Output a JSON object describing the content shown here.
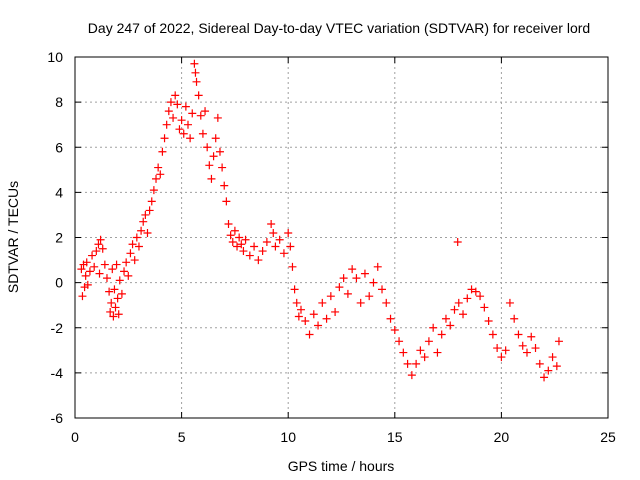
{
  "chart_data": {
    "type": "scatter",
    "title": "Day 247 of 2022, Sidereal Day-to-day VTEC variation (SDTVAR) for receiver lord",
    "xlabel": "GPS time / hours",
    "ylabel": "SDTVAR / TECUs",
    "xlim": [
      0,
      25
    ],
    "ylim": [
      -6,
      10
    ],
    "xticks": [
      0,
      5,
      10,
      15,
      20,
      25
    ],
    "yticks": [
      -6,
      -4,
      -2,
      0,
      2,
      4,
      6,
      8,
      10
    ],
    "grid": true,
    "marker": "+",
    "series_color": "#ff0000",
    "series": [
      {
        "name": "SDTVAR",
        "points": [
          [
            0.3,
            0.6
          ],
          [
            0.35,
            -0.6
          ],
          [
            0.4,
            0.8
          ],
          [
            0.45,
            -0.2
          ],
          [
            0.5,
            0.3
          ],
          [
            0.55,
            0.9
          ],
          [
            0.6,
            -0.1
          ],
          [
            0.7,
            0.5
          ],
          [
            0.8,
            1.2
          ],
          [
            0.9,
            0.7
          ],
          [
            1.0,
            1.4
          ],
          [
            1.1,
            1.7
          ],
          [
            1.15,
            0.4
          ],
          [
            1.2,
            1.9
          ],
          [
            1.3,
            1.5
          ],
          [
            1.4,
            0.8
          ],
          [
            1.5,
            0.2
          ],
          [
            1.6,
            -0.4
          ],
          [
            1.65,
            -1.3
          ],
          [
            1.7,
            -0.9
          ],
          [
            1.75,
            0.6
          ],
          [
            1.8,
            -1.5
          ],
          [
            1.85,
            -0.3
          ],
          [
            1.9,
            -1.1
          ],
          [
            1.95,
            0.8
          ],
          [
            2.0,
            -0.7
          ],
          [
            2.05,
            -1.4
          ],
          [
            2.1,
            0.1
          ],
          [
            2.2,
            -0.5
          ],
          [
            2.3,
            0.5
          ],
          [
            2.4,
            0.9
          ],
          [
            2.5,
            0.3
          ],
          [
            2.6,
            1.3
          ],
          [
            2.7,
            1.7
          ],
          [
            2.8,
            1.0
          ],
          [
            2.9,
            2.0
          ],
          [
            3.0,
            1.6
          ],
          [
            3.1,
            2.3
          ],
          [
            3.2,
            2.7
          ],
          [
            3.3,
            3.0
          ],
          [
            3.4,
            2.2
          ],
          [
            3.5,
            3.2
          ],
          [
            3.6,
            3.6
          ],
          [
            3.7,
            4.1
          ],
          [
            3.8,
            4.6
          ],
          [
            3.9,
            5.1
          ],
          [
            4.0,
            4.8
          ],
          [
            4.1,
            5.8
          ],
          [
            4.2,
            6.4
          ],
          [
            4.3,
            7.0
          ],
          [
            4.4,
            7.6
          ],
          [
            4.5,
            8.0
          ],
          [
            4.6,
            7.3
          ],
          [
            4.7,
            8.3
          ],
          [
            4.8,
            7.9
          ],
          [
            4.9,
            6.8
          ],
          [
            5.0,
            7.2
          ],
          [
            5.1,
            6.6
          ],
          [
            5.2,
            7.8
          ],
          [
            5.3,
            7.0
          ],
          [
            5.4,
            6.4
          ],
          [
            5.5,
            7.5
          ],
          [
            5.6,
            9.7
          ],
          [
            5.65,
            9.3
          ],
          [
            5.7,
            8.9
          ],
          [
            5.8,
            8.3
          ],
          [
            5.9,
            7.4
          ],
          [
            6.0,
            6.6
          ],
          [
            6.1,
            7.6
          ],
          [
            6.2,
            6.0
          ],
          [
            6.3,
            5.2
          ],
          [
            6.4,
            4.6
          ],
          [
            6.5,
            5.6
          ],
          [
            6.6,
            6.4
          ],
          [
            6.7,
            7.3
          ],
          [
            6.8,
            5.8
          ],
          [
            6.9,
            5.1
          ],
          [
            7.0,
            4.3
          ],
          [
            7.1,
            3.6
          ],
          [
            7.2,
            2.6
          ],
          [
            7.3,
            2.1
          ],
          [
            7.4,
            1.8
          ],
          [
            7.5,
            2.3
          ],
          [
            7.6,
            1.6
          ],
          [
            7.7,
            2.0
          ],
          [
            7.8,
            1.7
          ],
          [
            7.9,
            1.4
          ],
          [
            8.0,
            1.9
          ],
          [
            8.2,
            1.2
          ],
          [
            8.4,
            1.6
          ],
          [
            8.6,
            1.0
          ],
          [
            8.8,
            1.4
          ],
          [
            9.0,
            1.8
          ],
          [
            9.2,
            2.6
          ],
          [
            9.3,
            2.2
          ],
          [
            9.4,
            1.6
          ],
          [
            9.6,
            1.9
          ],
          [
            9.8,
            1.3
          ],
          [
            10.0,
            2.2
          ],
          [
            10.1,
            1.6
          ],
          [
            10.2,
            0.7
          ],
          [
            10.3,
            -0.3
          ],
          [
            10.4,
            -0.9
          ],
          [
            10.5,
            -1.5
          ],
          [
            10.6,
            -1.2
          ],
          [
            10.8,
            -1.7
          ],
          [
            11.0,
            -2.3
          ],
          [
            11.2,
            -1.4
          ],
          [
            11.4,
            -1.9
          ],
          [
            11.6,
            -0.9
          ],
          [
            11.8,
            -1.6
          ],
          [
            12.0,
            -0.6
          ],
          [
            12.2,
            -1.3
          ],
          [
            12.4,
            -0.2
          ],
          [
            12.6,
            0.2
          ],
          [
            12.8,
            -0.5
          ],
          [
            13.0,
            0.6
          ],
          [
            13.2,
            0.2
          ],
          [
            13.4,
            -0.9
          ],
          [
            13.6,
            0.4
          ],
          [
            13.8,
            -0.6
          ],
          [
            14.0,
            0.0
          ],
          [
            14.2,
            0.7
          ],
          [
            14.4,
            -0.3
          ],
          [
            14.6,
            -0.9
          ],
          [
            14.8,
            -1.6
          ],
          [
            15.0,
            -2.1
          ],
          [
            15.2,
            -2.6
          ],
          [
            15.4,
            -3.1
          ],
          [
            15.6,
            -3.6
          ],
          [
            15.8,
            -4.1
          ],
          [
            16.0,
            -3.6
          ],
          [
            16.2,
            -3.0
          ],
          [
            16.4,
            -3.3
          ],
          [
            16.6,
            -2.6
          ],
          [
            16.8,
            -2.0
          ],
          [
            17.0,
            -3.1
          ],
          [
            17.2,
            -2.3
          ],
          [
            17.4,
            -1.6
          ],
          [
            17.6,
            -1.9
          ],
          [
            17.8,
            -1.2
          ],
          [
            17.95,
            1.8
          ],
          [
            18.0,
            -0.9
          ],
          [
            18.2,
            -1.4
          ],
          [
            18.4,
            -0.7
          ],
          [
            18.6,
            -0.3
          ],
          [
            18.8,
            -0.4
          ],
          [
            19.0,
            -0.6
          ],
          [
            19.2,
            -1.1
          ],
          [
            19.4,
            -1.7
          ],
          [
            19.6,
            -2.3
          ],
          [
            19.8,
            -2.9
          ],
          [
            20.0,
            -3.3
          ],
          [
            20.2,
            -3.0
          ],
          [
            20.4,
            -0.9
          ],
          [
            20.6,
            -1.6
          ],
          [
            20.8,
            -2.3
          ],
          [
            21.0,
            -2.8
          ],
          [
            21.2,
            -3.1
          ],
          [
            21.4,
            -2.4
          ],
          [
            21.6,
            -2.9
          ],
          [
            21.8,
            -3.6
          ],
          [
            22.0,
            -4.2
          ],
          [
            22.2,
            -3.9
          ],
          [
            22.4,
            -3.3
          ],
          [
            22.6,
            -3.7
          ],
          [
            22.7,
            -2.6
          ]
        ]
      }
    ]
  }
}
